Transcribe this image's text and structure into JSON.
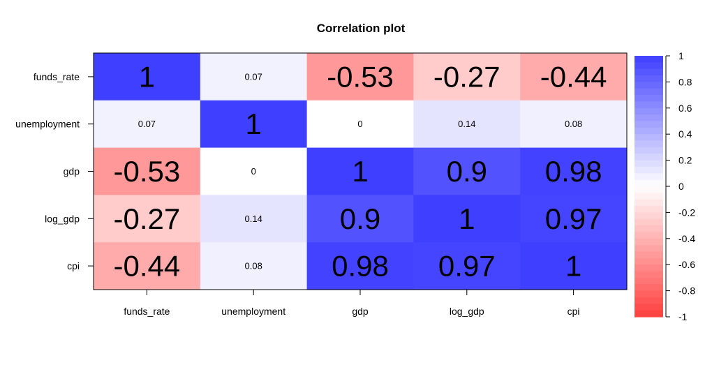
{
  "chart_data": {
    "type": "heatmap",
    "title": "Correlation plot",
    "row_labels": [
      "funds_rate",
      "unemployment",
      "gdp",
      "log_gdp",
      "cpi"
    ],
    "column_labels": [
      "funds_rate",
      "unemployment",
      "gdp",
      "log_gdp",
      "cpi"
    ],
    "values": [
      [
        1,
        0.07,
        -0.53,
        -0.27,
        -0.44
      ],
      [
        0.07,
        1,
        0,
        0.14,
        0.08
      ],
      [
        -0.53,
        0,
        1,
        0.9,
        0.98
      ],
      [
        -0.27,
        0.14,
        0.9,
        1,
        0.97
      ],
      [
        -0.44,
        0.08,
        0.98,
        0.97,
        1
      ]
    ],
    "value_labels": [
      [
        "1",
        "0.07",
        "-0.53",
        "-0.27",
        "-0.44"
      ],
      [
        "0.07",
        "1",
        "0",
        "0.14",
        "0.08"
      ],
      [
        "-0.53",
        "0",
        "1",
        "0.9",
        "0.98"
      ],
      [
        "-0.27",
        "0.14",
        "0.9",
        "1",
        "0.97"
      ],
      [
        "-0.44",
        "0.08",
        "0.98",
        "0.97",
        "1"
      ]
    ],
    "color_scale": {
      "min": -1,
      "max": 1,
      "low_color": "#ff3f3f",
      "mid_color": "#ffffff",
      "high_color": "#3f3fff"
    },
    "legend": {
      "placement": "right",
      "ticks": [
        1,
        0.8,
        0.6,
        0.4,
        0.2,
        0,
        -0.2,
        -0.4,
        -0.6,
        -0.8,
        -1
      ],
      "tick_labels": [
        "1",
        "0.8",
        "0.6",
        "0.4",
        "0.2",
        "0",
        "-0.2",
        "-0.4",
        "-0.6",
        "-0.8",
        "-1"
      ]
    }
  }
}
